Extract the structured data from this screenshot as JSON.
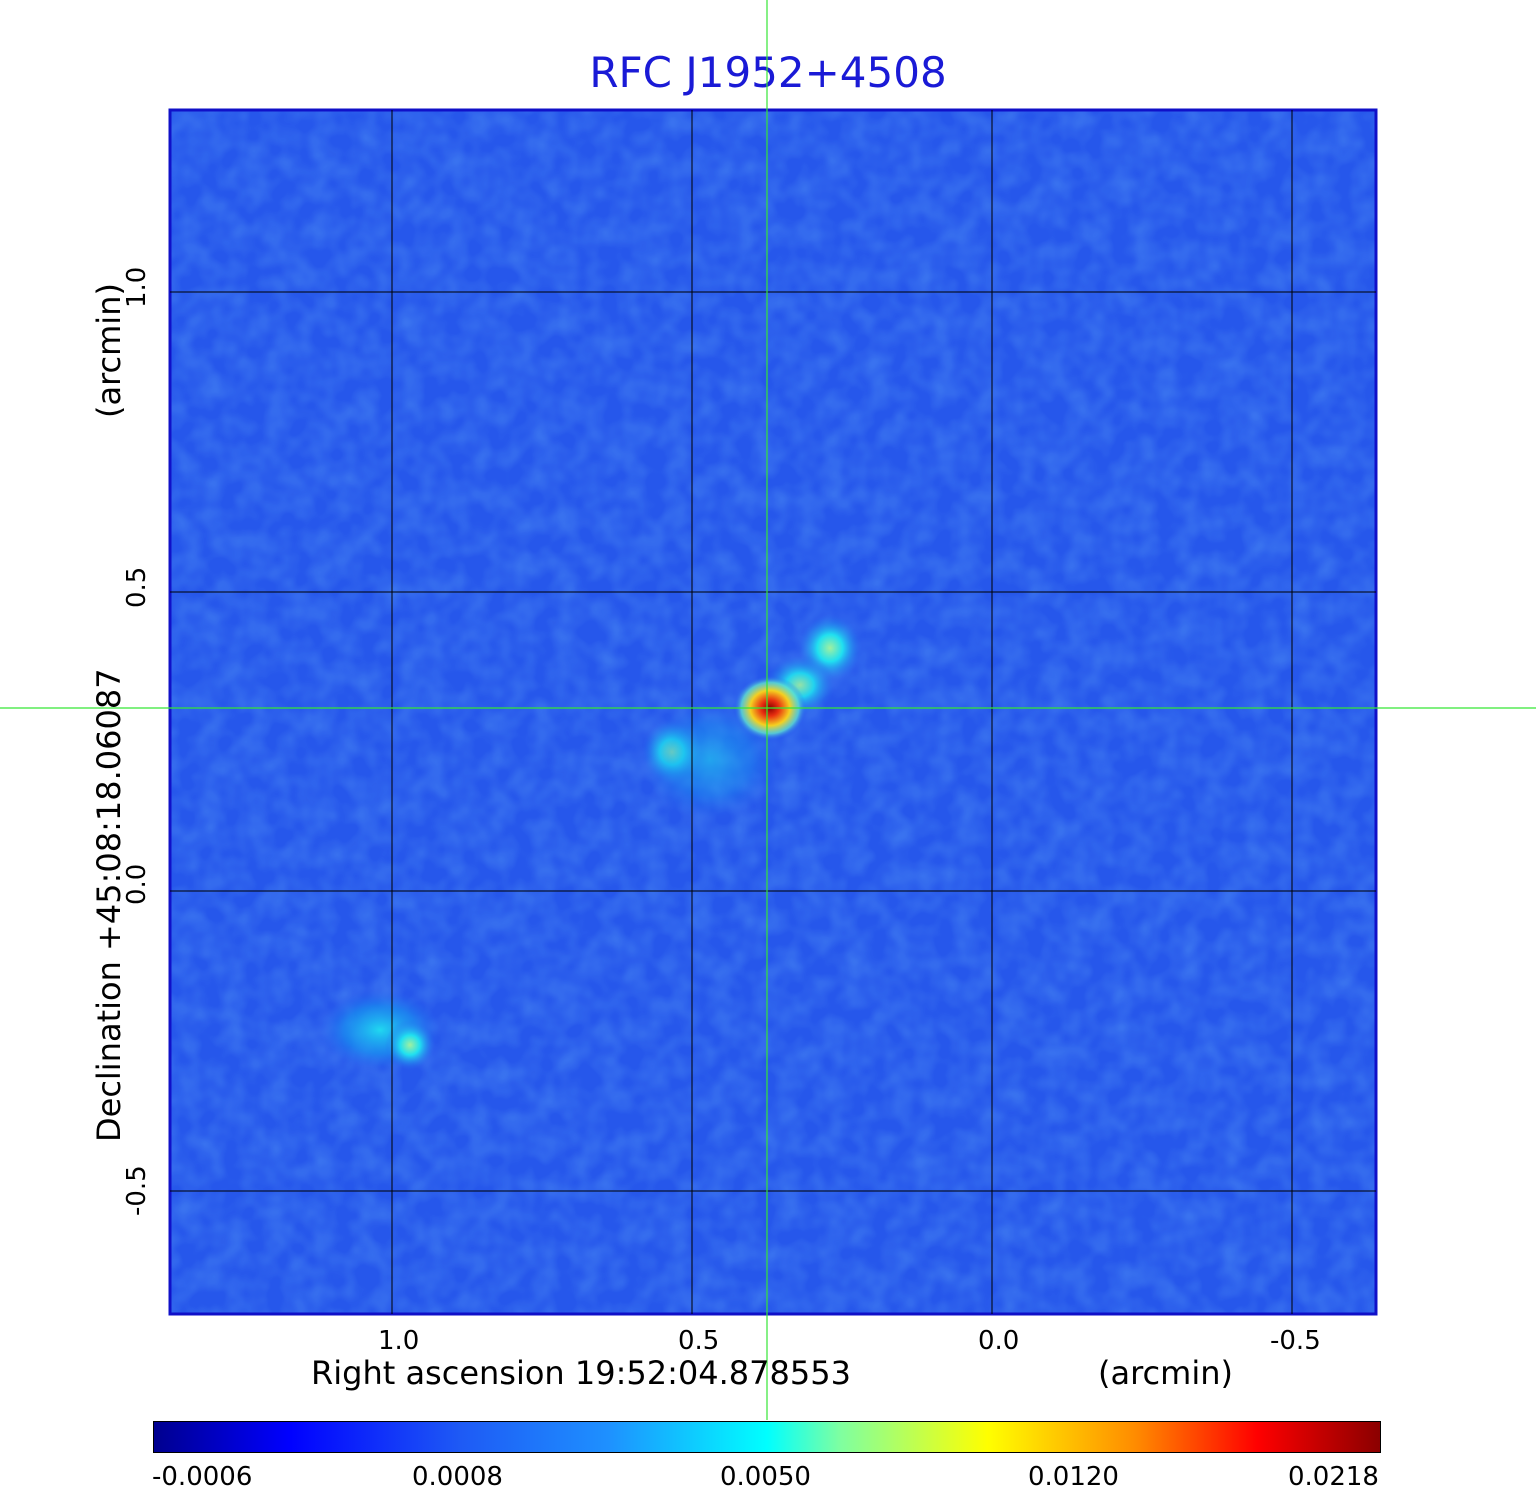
{
  "title": "RFC J1952+4508",
  "x_axis": {
    "label_main": "Right ascension  19:52:04.878553",
    "label_unit": "(arcmin)",
    "ticks": [
      "1.0",
      "0.5",
      "0.0",
      "-0.5"
    ]
  },
  "y_axis": {
    "label_main": "Declination  +45:08:18.06087",
    "label_unit": "(arcmin)",
    "ticks": [
      "1.0",
      "0.5",
      "0.0",
      "-0.5"
    ]
  },
  "colorbar": {
    "ticks": [
      "-0.0006",
      "0.0008",
      "0.0050",
      "0.0120",
      "0.0218"
    ]
  },
  "colors": {
    "title": "#1a1ad6",
    "frame": "#1010c8",
    "background_field": "#2a5df0",
    "crosshair": "#35e635",
    "grid": "#000000"
  }
}
